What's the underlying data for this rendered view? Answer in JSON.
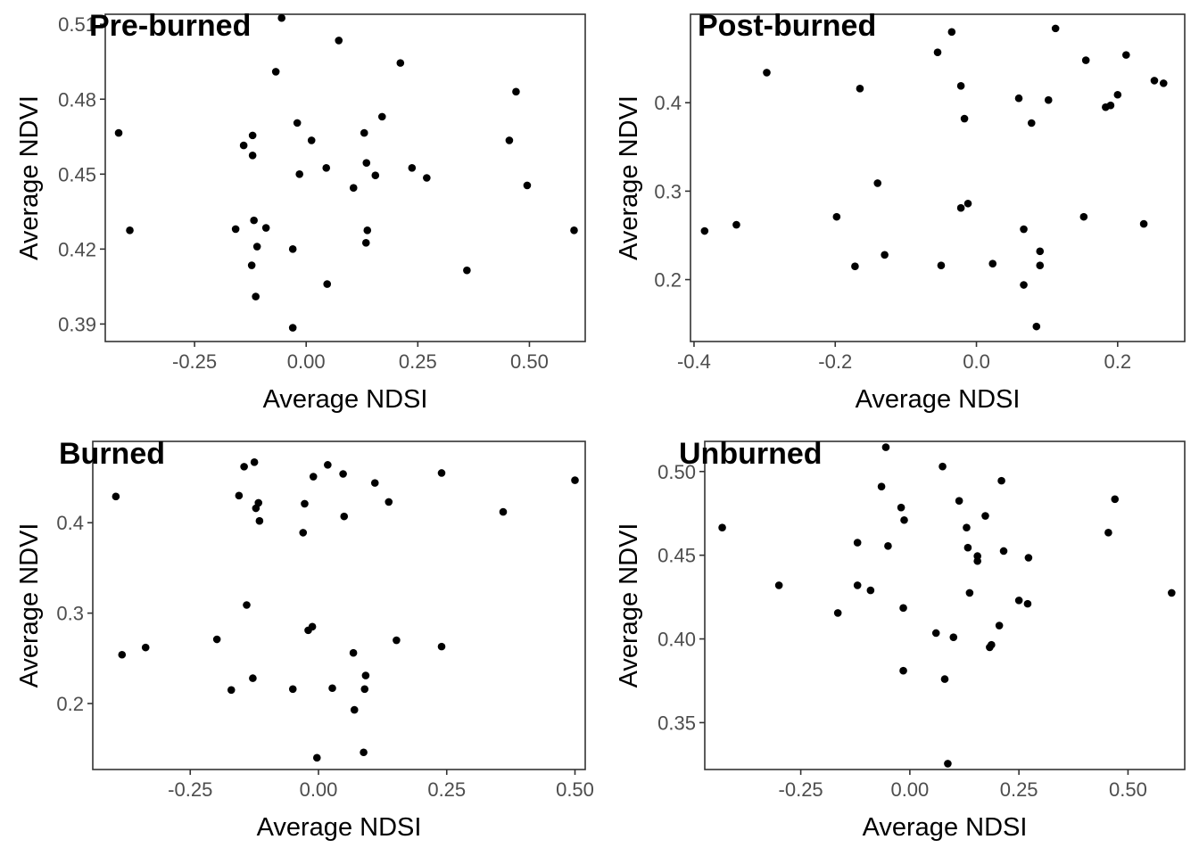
{
  "chart_data": [
    {
      "type": "scatter",
      "title": "Pre-burned",
      "xlabel": "Average NDSI",
      "ylabel": "Average NDVI",
      "xlim": [
        -0.45,
        0.625
      ],
      "ylim": [
        0.383,
        0.514
      ],
      "xticks": [
        -0.25,
        0.0,
        0.25,
        0.5
      ],
      "xtick_labels": [
        "-0.25",
        "0.00",
        "0.25",
        "0.50"
      ],
      "yticks": [
        0.39,
        0.42,
        0.45,
        0.48,
        0.51
      ],
      "ytick_labels": [
        "0.39",
        "0.42",
        "0.45",
        "0.48",
        "0.51"
      ],
      "grid": false,
      "points": [
        {
          "x": -0.055,
          "y": 0.5125
        },
        {
          "x": 0.073,
          "y": 0.5035
        },
        {
          "x": 0.211,
          "y": 0.4945
        },
        {
          "x": -0.068,
          "y": 0.491
        },
        {
          "x": 0.47,
          "y": 0.483
        },
        {
          "x": 0.17,
          "y": 0.473
        },
        {
          "x": -0.02,
          "y": 0.4705
        },
        {
          "x": -0.42,
          "y": 0.4665
        },
        {
          "x": 0.13,
          "y": 0.4665
        },
        {
          "x": -0.12,
          "y": 0.4655
        },
        {
          "x": 0.012,
          "y": 0.4635
        },
        {
          "x": 0.455,
          "y": 0.4635
        },
        {
          "x": -0.14,
          "y": 0.4615
        },
        {
          "x": -0.12,
          "y": 0.4575
        },
        {
          "x": 0.135,
          "y": 0.4545
        },
        {
          "x": 0.045,
          "y": 0.4525
        },
        {
          "x": 0.237,
          "y": 0.4525
        },
        {
          "x": -0.015,
          "y": 0.45
        },
        {
          "x": 0.155,
          "y": 0.4495
        },
        {
          "x": 0.27,
          "y": 0.4485
        },
        {
          "x": 0.495,
          "y": 0.4455
        },
        {
          "x": 0.106,
          "y": 0.4445
        },
        {
          "x": -0.117,
          "y": 0.4315
        },
        {
          "x": -0.09,
          "y": 0.4285
        },
        {
          "x": -0.158,
          "y": 0.428
        },
        {
          "x": -0.395,
          "y": 0.4275
        },
        {
          "x": 0.137,
          "y": 0.4275
        },
        {
          "x": 0.6,
          "y": 0.4275
        },
        {
          "x": 0.134,
          "y": 0.4225
        },
        {
          "x": -0.11,
          "y": 0.421
        },
        {
          "x": -0.03,
          "y": 0.42
        },
        {
          "x": -0.122,
          "y": 0.4135
        },
        {
          "x": 0.36,
          "y": 0.4115
        },
        {
          "x": 0.047,
          "y": 0.406
        },
        {
          "x": -0.113,
          "y": 0.401
        },
        {
          "x": -0.03,
          "y": 0.3885
        }
      ]
    },
    {
      "type": "scatter",
      "title": "Post-burned",
      "xlabel": "Average NDSI",
      "ylabel": "Average NDVI",
      "xlim": [
        -0.405,
        0.295
      ],
      "ylim": [
        0.13,
        0.5
      ],
      "xticks": [
        -0.4,
        -0.2,
        0.0,
        0.2
      ],
      "xtick_labels": [
        "-0.4",
        "-0.2",
        "0.0",
        "0.2"
      ],
      "yticks": [
        0.2,
        0.3,
        0.4
      ],
      "ytick_labels": [
        "0.2",
        "0.3",
        "0.4"
      ],
      "grid": false,
      "points": [
        {
          "x": 0.112,
          "y": 0.484
        },
        {
          "x": -0.035,
          "y": 0.48
        },
        {
          "x": -0.055,
          "y": 0.457
        },
        {
          "x": 0.212,
          "y": 0.454
        },
        {
          "x": 0.155,
          "y": 0.448
        },
        {
          "x": -0.297,
          "y": 0.434
        },
        {
          "x": 0.252,
          "y": 0.425
        },
        {
          "x": 0.265,
          "y": 0.422
        },
        {
          "x": -0.022,
          "y": 0.419
        },
        {
          "x": -0.165,
          "y": 0.416
        },
        {
          "x": 0.2,
          "y": 0.409
        },
        {
          "x": 0.06,
          "y": 0.405
        },
        {
          "x": 0.102,
          "y": 0.403
        },
        {
          "x": 0.19,
          "y": 0.397
        },
        {
          "x": 0.183,
          "y": 0.395
        },
        {
          "x": -0.017,
          "y": 0.382
        },
        {
          "x": 0.078,
          "y": 0.377
        },
        {
          "x": -0.14,
          "y": 0.309
        },
        {
          "x": -0.012,
          "y": 0.286
        },
        {
          "x": -0.022,
          "y": 0.281
        },
        {
          "x": -0.198,
          "y": 0.271
        },
        {
          "x": 0.152,
          "y": 0.271
        },
        {
          "x": -0.34,
          "y": 0.262
        },
        {
          "x": 0.237,
          "y": 0.263
        },
        {
          "x": 0.067,
          "y": 0.257
        },
        {
          "x": -0.385,
          "y": 0.255
        },
        {
          "x": 0.09,
          "y": 0.232
        },
        {
          "x": -0.13,
          "y": 0.228
        },
        {
          "x": 0.023,
          "y": 0.218
        },
        {
          "x": -0.05,
          "y": 0.216
        },
        {
          "x": 0.09,
          "y": 0.216
        },
        {
          "x": -0.172,
          "y": 0.215
        },
        {
          "x": 0.067,
          "y": 0.194
        },
        {
          "x": 0.085,
          "y": 0.147
        }
      ]
    },
    {
      "type": "scatter",
      "title": "Burned",
      "xlabel": "Average NDSI",
      "ylabel": "Average NDVI",
      "xlim": [
        -0.44,
        0.52
      ],
      "ylim": [
        0.127,
        0.49
      ],
      "xticks": [
        -0.25,
        0.0,
        0.25,
        0.5
      ],
      "xtick_labels": [
        "-0.25",
        "0.00",
        "0.25",
        "0.50"
      ],
      "yticks": [
        0.2,
        0.3,
        0.4
      ],
      "ytick_labels": [
        "0.2",
        "0.3",
        "0.4"
      ],
      "grid": false,
      "points": [
        {
          "x": -0.125,
          "y": 0.467
        },
        {
          "x": 0.018,
          "y": 0.464
        },
        {
          "x": -0.145,
          "y": 0.462
        },
        {
          "x": 0.24,
          "y": 0.455
        },
        {
          "x": 0.048,
          "y": 0.454
        },
        {
          "x": -0.01,
          "y": 0.451
        },
        {
          "x": 0.5,
          "y": 0.447
        },
        {
          "x": 0.11,
          "y": 0.444
        },
        {
          "x": -0.155,
          "y": 0.43
        },
        {
          "x": -0.395,
          "y": 0.429
        },
        {
          "x": -0.117,
          "y": 0.422
        },
        {
          "x": 0.137,
          "y": 0.423
        },
        {
          "x": -0.027,
          "y": 0.421
        },
        {
          "x": -0.122,
          "y": 0.416
        },
        {
          "x": 0.36,
          "y": 0.412
        },
        {
          "x": 0.05,
          "y": 0.407
        },
        {
          "x": -0.115,
          "y": 0.402
        },
        {
          "x": -0.03,
          "y": 0.389
        },
        {
          "x": -0.14,
          "y": 0.309
        },
        {
          "x": -0.012,
          "y": 0.285
        },
        {
          "x": -0.02,
          "y": 0.281
        },
        {
          "x": -0.198,
          "y": 0.271
        },
        {
          "x": 0.152,
          "y": 0.27
        },
        {
          "x": -0.337,
          "y": 0.262
        },
        {
          "x": 0.24,
          "y": 0.263
        },
        {
          "x": 0.068,
          "y": 0.256
        },
        {
          "x": -0.383,
          "y": 0.254
        },
        {
          "x": 0.092,
          "y": 0.231
        },
        {
          "x": -0.128,
          "y": 0.228
        },
        {
          "x": 0.027,
          "y": 0.217
        },
        {
          "x": -0.05,
          "y": 0.216
        },
        {
          "x": 0.09,
          "y": 0.216
        },
        {
          "x": -0.17,
          "y": 0.215
        },
        {
          "x": 0.07,
          "y": 0.193
        },
        {
          "x": 0.088,
          "y": 0.146
        },
        {
          "x": -0.003,
          "y": 0.14
        }
      ]
    },
    {
      "type": "scatter",
      "title": "Unburned",
      "xlabel": "Average NDSI",
      "ylabel": "Average NDVI",
      "xlim": [
        -0.47,
        0.63
      ],
      "ylim": [
        0.322,
        0.518
      ],
      "xticks": [
        -0.25,
        0.0,
        0.25,
        0.5
      ],
      "xtick_labels": [
        "-0.25",
        "0.00",
        "0.25",
        "0.50"
      ],
      "yticks": [
        0.35,
        0.4,
        0.45,
        0.5
      ],
      "ytick_labels": [
        "0.35",
        "0.40",
        "0.45",
        "0.50"
      ],
      "grid": false,
      "points": [
        {
          "x": -0.055,
          "y": 0.5145
        },
        {
          "x": 0.075,
          "y": 0.503
        },
        {
          "x": 0.21,
          "y": 0.4945
        },
        {
          "x": -0.065,
          "y": 0.491
        },
        {
          "x": 0.47,
          "y": 0.4835
        },
        {
          "x": 0.113,
          "y": 0.4825
        },
        {
          "x": -0.02,
          "y": 0.4785
        },
        {
          "x": 0.173,
          "y": 0.4735
        },
        {
          "x": -0.013,
          "y": 0.471
        },
        {
          "x": -0.43,
          "y": 0.4665
        },
        {
          "x": 0.13,
          "y": 0.4665
        },
        {
          "x": 0.455,
          "y": 0.4635
        },
        {
          "x": -0.12,
          "y": 0.4575
        },
        {
          "x": -0.05,
          "y": 0.4555
        },
        {
          "x": 0.133,
          "y": 0.4545
        },
        {
          "x": 0.215,
          "y": 0.4525
        },
        {
          "x": 0.155,
          "y": 0.4495
        },
        {
          "x": 0.272,
          "y": 0.4485
        },
        {
          "x": 0.155,
          "y": 0.4465
        },
        {
          "x": -0.12,
          "y": 0.432
        },
        {
          "x": -0.3,
          "y": 0.432
        },
        {
          "x": -0.09,
          "y": 0.429
        },
        {
          "x": 0.137,
          "y": 0.4275
        },
        {
          "x": 0.6,
          "y": 0.4275
        },
        {
          "x": 0.25,
          "y": 0.423
        },
        {
          "x": 0.27,
          "y": 0.421
        },
        {
          "x": -0.015,
          "y": 0.4185
        },
        {
          "x": -0.165,
          "y": 0.4155
        },
        {
          "x": 0.205,
          "y": 0.408
        },
        {
          "x": 0.06,
          "y": 0.4035
        },
        {
          "x": 0.1,
          "y": 0.401
        },
        {
          "x": 0.187,
          "y": 0.3965
        },
        {
          "x": 0.183,
          "y": 0.395
        },
        {
          "x": -0.015,
          "y": 0.381
        },
        {
          "x": 0.08,
          "y": 0.376
        },
        {
          "x": 0.087,
          "y": 0.3255
        }
      ]
    }
  ]
}
